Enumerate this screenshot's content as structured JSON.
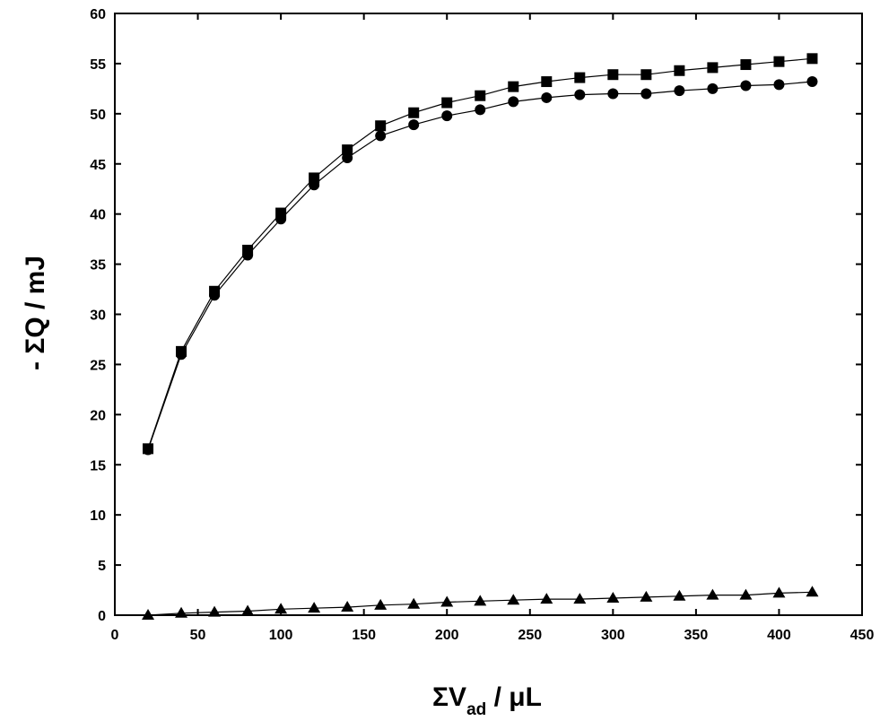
{
  "chart_data": {
    "type": "scatter",
    "xlabel": {
      "prefix": "ΣV",
      "sub": "ad",
      "suffix": " / μL"
    },
    "ylabel": "- ΣQ / mJ",
    "xlim": [
      0,
      450
    ],
    "ylim": [
      0,
      60
    ],
    "xticks": [
      0,
      50,
      100,
      150,
      200,
      250,
      300,
      350,
      400,
      450
    ],
    "yticks": [
      0,
      5,
      10,
      15,
      20,
      25,
      30,
      35,
      40,
      45,
      50,
      55,
      60
    ],
    "grid": false,
    "legend": "none",
    "x": [
      20,
      40,
      60,
      80,
      100,
      120,
      140,
      160,
      180,
      200,
      220,
      240,
      260,
      280,
      300,
      320,
      340,
      360,
      380,
      400,
      420
    ],
    "series": [
      {
        "marker": "square",
        "color": "#000000",
        "values": [
          16.6,
          26.3,
          32.3,
          36.4,
          40.1,
          43.6,
          46.4,
          48.8,
          50.1,
          51.1,
          51.8,
          52.7,
          53.2,
          53.6,
          53.9,
          53.9,
          54.3,
          54.6,
          54.9,
          55.2,
          55.5
        ]
      },
      {
        "marker": "circle",
        "color": "#000000",
        "values": [
          16.5,
          26.0,
          31.9,
          35.9,
          39.5,
          42.9,
          45.6,
          47.8,
          48.9,
          49.8,
          50.4,
          51.2,
          51.6,
          51.9,
          52.0,
          52.0,
          52.3,
          52.5,
          52.8,
          52.9,
          53.2
        ]
      },
      {
        "marker": "triangle",
        "color": "#000000",
        "values": [
          0.0,
          0.2,
          0.3,
          0.4,
          0.6,
          0.7,
          0.8,
          1.0,
          1.1,
          1.3,
          1.4,
          1.5,
          1.6,
          1.6,
          1.7,
          1.8,
          1.9,
          2.0,
          2.0,
          2.2,
          2.3
        ]
      }
    ]
  }
}
